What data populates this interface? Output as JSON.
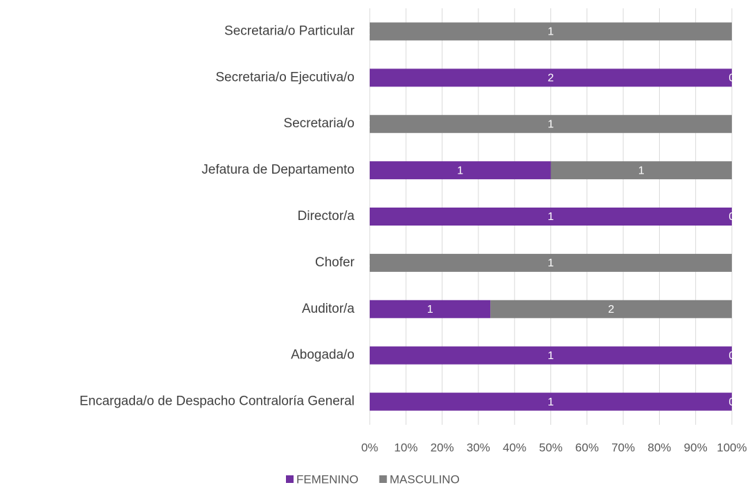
{
  "chart_data": {
    "type": "bar",
    "orientation": "horizontal",
    "stacking": "percent",
    "categories": [
      "Secretaria/o Particular",
      "Secretaria/o Ejecutiva/o",
      "Secretaria/o",
      "Jefatura de Departamento",
      "Director/a",
      "Chofer",
      "Auditor/a",
      "Abogada/o",
      "Encargada/o de Despacho Contraloría General"
    ],
    "series": [
      {
        "name": "FEMENINO",
        "color": "#7030a0",
        "values": [
          0,
          2,
          0,
          1,
          1,
          0,
          1,
          1,
          1
        ]
      },
      {
        "name": "MASCULINO",
        "color": "#808080",
        "values": [
          1,
          0,
          1,
          1,
          0,
          1,
          2,
          0,
          0
        ]
      }
    ],
    "xlim": [
      0,
      100
    ],
    "xticks": [
      {
        "value": 0,
        "label": "0%"
      },
      {
        "value": 10,
        "label": "10%"
      },
      {
        "value": 20,
        "label": "20%"
      },
      {
        "value": 30,
        "label": "30%"
      },
      {
        "value": 40,
        "label": "40%"
      },
      {
        "value": 50,
        "label": "50%"
      },
      {
        "value": 60,
        "label": "60%"
      },
      {
        "value": 70,
        "label": "70%"
      },
      {
        "value": 80,
        "label": "80%"
      },
      {
        "value": 90,
        "label": "90%"
      },
      {
        "value": 100,
        "label": "100%"
      }
    ],
    "grid": true,
    "legend": "bottom"
  }
}
